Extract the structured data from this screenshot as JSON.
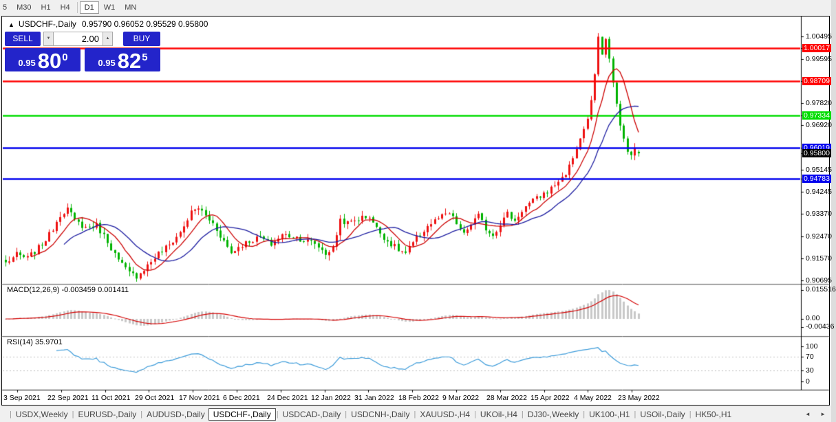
{
  "toolbar": {
    "timeframes": [
      {
        "label": "5",
        "selected": false
      },
      {
        "label": "M30",
        "selected": false
      },
      {
        "label": "H1",
        "selected": false
      },
      {
        "label": "H4",
        "selected": false
      },
      {
        "label": "D1",
        "selected": true
      },
      {
        "label": "W1",
        "selected": false
      },
      {
        "label": "MN",
        "selected": false
      }
    ]
  },
  "chart": {
    "title": {
      "arrow": "▲",
      "symbol": "USDCHF-,Daily",
      "ohlc": "0.95790 0.96052 0.95529 0.95800"
    },
    "trade_panel": {
      "sell_label": "SELL",
      "buy_label": "BUY",
      "volume": "2.00",
      "sell_price": {
        "prefix": "0.95",
        "big": "80",
        "sup": "0",
        "full": "0.95800"
      },
      "buy_price": {
        "prefix": "0.95",
        "big": "82",
        "sup": "5",
        "full": "0.95825"
      }
    }
  },
  "chart_data": {
    "type": "candlestick",
    "symbol": "USDCHF-",
    "timeframe": "Daily",
    "last_quote": {
      "open": 0.9579,
      "high": 0.96052,
      "low": 0.95529,
      "close": 0.958,
      "bid": 0.958,
      "ask": 0.95825
    },
    "bars": 175,
    "price_axis": {
      "p_top": 1.0124,
      "p_bottom": 0.9064,
      "tick_labels": [
        1.00495,
        0.99595,
        0.9782,
        0.9692,
        0.95145,
        0.94245,
        0.9337,
        0.9247,
        0.9157,
        0.90695
      ]
    },
    "close_anchors": [
      [
        0,
        0.914
      ],
      [
        3,
        0.9172
      ],
      [
        6,
        0.9158
      ],
      [
        9,
        0.92
      ],
      [
        12,
        0.9252
      ],
      [
        15,
        0.9335
      ],
      [
        17,
        0.9358
      ],
      [
        19,
        0.9308
      ],
      [
        22,
        0.9282
      ],
      [
        25,
        0.929
      ],
      [
        28,
        0.9228
      ],
      [
        31,
        0.9148
      ],
      [
        34,
        0.9098
      ],
      [
        36,
        0.9088
      ],
      [
        39,
        0.913
      ],
      [
        42,
        0.9178
      ],
      [
        45,
        0.9212
      ],
      [
        48,
        0.9262
      ],
      [
        51,
        0.9342
      ],
      [
        53,
        0.9362
      ],
      [
        55,
        0.9328
      ],
      [
        57,
        0.9298
      ],
      [
        60,
        0.9228
      ],
      [
        62,
        0.918
      ],
      [
        64,
        0.9205
      ],
      [
        67,
        0.9228
      ],
      [
        70,
        0.9242
      ],
      [
        73,
        0.9215
      ],
      [
        76,
        0.9252
      ],
      [
        79,
        0.9248
      ],
      [
        82,
        0.9232
      ],
      [
        85,
        0.9218
      ],
      [
        88,
        0.9178
      ],
      [
        90,
        0.9198
      ],
      [
        92,
        0.9315
      ],
      [
        94,
        0.9298
      ],
      [
        97,
        0.9318
      ],
      [
        100,
        0.9328
      ],
      [
        102,
        0.9278
      ],
      [
        105,
        0.9228
      ],
      [
        108,
        0.9192
      ],
      [
        110,
        0.9178
      ],
      [
        113,
        0.9238
      ],
      [
        116,
        0.9288
      ],
      [
        119,
        0.9318
      ],
      [
        122,
        0.9338
      ],
      [
        124,
        0.9298
      ],
      [
        126,
        0.9252
      ],
      [
        128,
        0.9298
      ],
      [
        130,
        0.9328
      ],
      [
        132,
        0.9278
      ],
      [
        134,
        0.9252
      ],
      [
        136,
        0.9298
      ],
      [
        138,
        0.9338
      ],
      [
        140,
        0.9308
      ],
      [
        142,
        0.9352
      ],
      [
        144,
        0.9378
      ],
      [
        146,
        0.9398
      ],
      [
        148,
        0.9418
      ],
      [
        150,
        0.9438
      ],
      [
        152,
        0.9468
      ],
      [
        154,
        0.9498
      ],
      [
        156,
        0.9562
      ],
      [
        158,
        0.9638
      ],
      [
        160,
        0.9718
      ],
      [
        161,
        0.9788
      ],
      [
        162,
        0.9898
      ],
      [
        163,
        1.0042
      ],
      [
        164,
        0.9982
      ],
      [
        165,
        1.0038
      ],
      [
        166,
        0.9958
      ],
      [
        167,
        0.9868
      ],
      [
        168,
        0.9778
      ],
      [
        169,
        0.9688
      ],
      [
        170,
        0.9638
      ],
      [
        171,
        0.9592
      ],
      [
        172,
        0.9568
      ],
      [
        173,
        0.9602
      ],
      [
        174,
        0.958
      ]
    ],
    "levels": [
      {
        "price": 1.00017,
        "color": "#ff0000"
      },
      {
        "price": 0.98709,
        "color": "#ff0000"
      },
      {
        "price": 0.97334,
        "color": "#00dd00"
      },
      {
        "price": 0.96019,
        "color": "#0000ee"
      },
      {
        "price": 0.94783,
        "color": "#0000ee"
      }
    ],
    "current_price_badge": {
      "price": 0.958,
      "color": "#000000"
    },
    "moving_averages": [
      {
        "period": 8,
        "color": "#cc0000"
      },
      {
        "period": 17,
        "color": "#1c1ca0"
      }
    ],
    "macd": {
      "label": "MACD(12,26,9) -0.003459 0.001411",
      "fast": 12,
      "slow": 26,
      "signal": 9,
      "value": -0.003459,
      "signal_value": 0.001411,
      "axis_labels": [
        "0.015516",
        "0.00",
        "-0.00436"
      ]
    },
    "rsi": {
      "label": "RSI(14) 35.9701",
      "period": 14,
      "value": 35.9701,
      "axis_labels": [
        100,
        70,
        30,
        0
      ],
      "level_lines": [
        70,
        30
      ]
    },
    "x_axis_dates": [
      "3 Sep 2021",
      "22 Sep 2021",
      "11 Oct 2021",
      "29 Oct 2021",
      "17 Nov 2021",
      "6 Dec 2021",
      "24 Dec 2021",
      "12 Jan 2022",
      "31 Jan 2022",
      "18 Feb 2022",
      "9 Mar 2022",
      "28 Mar 2022",
      "15 Apr 2022",
      "4 May 2022",
      "23 May 2022"
    ]
  },
  "tabs": {
    "items": [
      "USDX,Weekly",
      "EURUSD-,Daily",
      "AUDUSD-,Daily",
      "USDCHF-,Daily",
      "USDCAD-,Daily",
      "USDCNH-,Daily",
      "XAUUSD-,H4",
      "UKOil-,H4",
      "DJ30-,Weekly",
      "UK100-,H1",
      "USOil-,Daily",
      "HK50-,H1"
    ],
    "selected_index": 3,
    "scroll_left": "◄",
    "scroll_right": "►"
  },
  "colors": {
    "bull": "#ee1111",
    "bear": "#00b300",
    "ma_fast": "#cc0000",
    "ma_slow": "#1c1ca0",
    "macd_hist": "#c8c8c8",
    "macd_signal": "#d40000",
    "rsi_line": "#3a9ad9",
    "rsi_levels": "#bdbdbd",
    "axis_line": "#000000",
    "separator": "#6a6a6a"
  }
}
